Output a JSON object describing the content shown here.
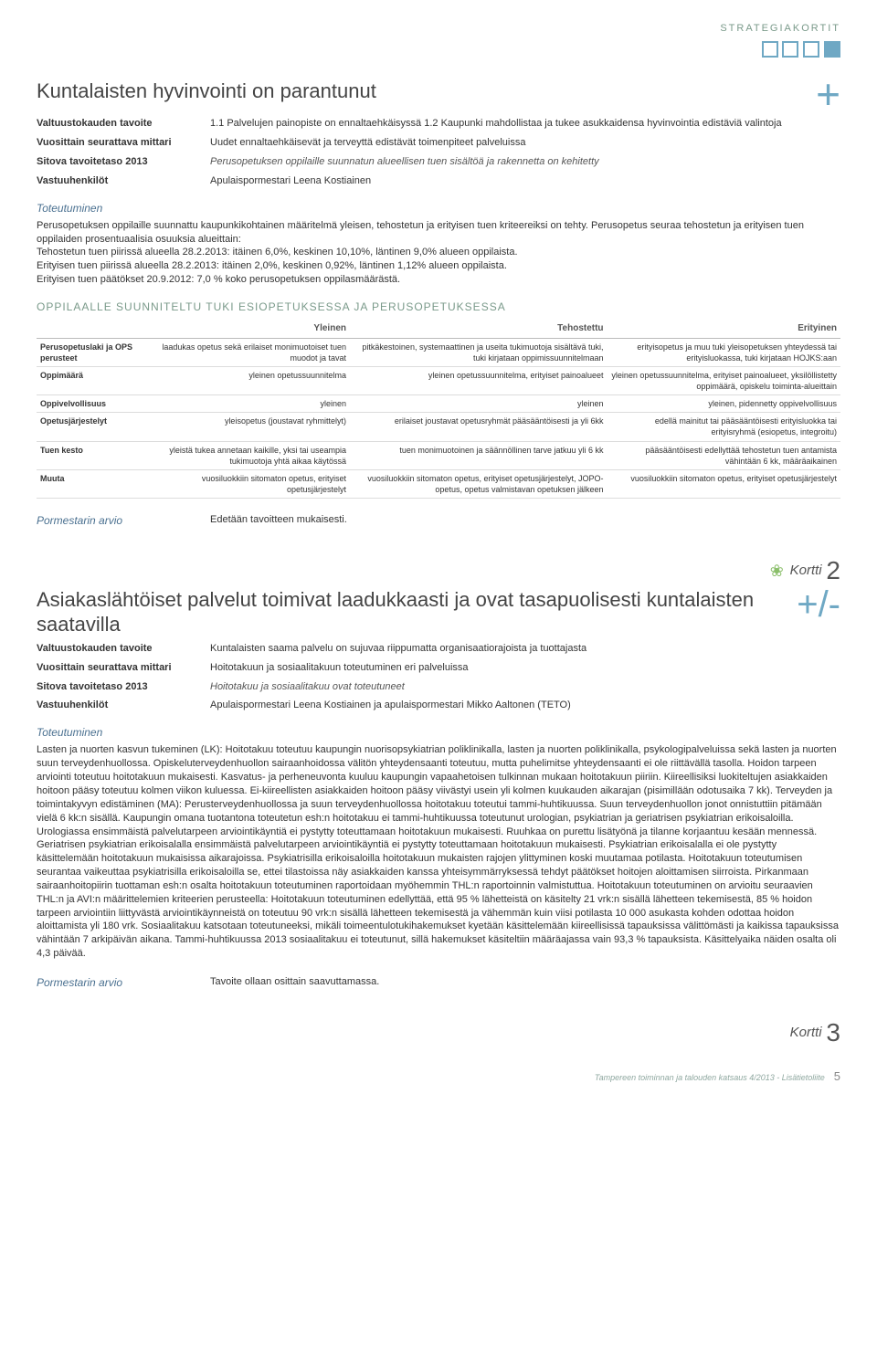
{
  "header": {
    "tag": "STRATEGIAKORTIT"
  },
  "card1": {
    "title": "Kuntalaisten hyvinvointi on parantunut",
    "sign": "+",
    "meta": [
      {
        "label": "Valtuustokauden tavoite",
        "value": "1.1 Palvelujen painopiste on ennaltaehkäisyssä 1.2 Kaupunki mahdollistaa ja tukee asukkaidensa hyvinvointia edistäviä valintoja"
      },
      {
        "label": "Vuosittain seurattava mittari",
        "value": "Uudet ennaltaehkäisevät ja terveyttä edistävät toimenpiteet palveluissa"
      },
      {
        "label": "Sitova tavoitetaso 2013",
        "value": "Perusopetuksen oppilaille suunnatun alueellisen tuen sisältöä ja rakennetta on kehitetty",
        "italic": true
      },
      {
        "label": "Vastuuhenkilöt",
        "value": "Apulaispormestari Leena Kostiainen"
      }
    ],
    "toteutuminen_heading": "Toteutuminen",
    "toteutuminen_body": "Perusopetuksen oppilaille suunnattu kaupunkikohtainen määritelmä yleisen, tehostetun ja erityisen tuen kriteereiksi on tehty. Perusopetus seuraa tehostetun ja erityisen tuen oppilaiden prosentuaalisia osuuksia alueittain:\nTehostetun tuen piirissä alueella 28.2.2013: itäinen 6,0%, keskinen 10,10%, läntinen 9,0% alueen oppilaista.\nErityisen tuen piirissä alueella 28.2.2013: itäinen 2,0%, keskinen 0,92%, läntinen 1,12% alueen oppilaista.\nErityisen tuen päätökset 20.9.2012: 7,0 % koko perusopetuksen oppilasmäärästä.",
    "table_title": "OPPILAALLE SUUNNITELTU TUKI ESIOPETUKSESSA JA PERUSOPETUKSESSA",
    "table": {
      "columns": [
        "",
        "Yleinen",
        "Tehostettu",
        "Erityinen"
      ],
      "rows": [
        [
          "Perusopetuslaki ja OPS perusteet",
          "laadukas opetus sekä erilaiset monimuotoiset tuen muodot ja tavat",
          "pitkäkestoinen, systemaattinen ja useita tukimuotoja sisältävä tuki, tuki kirjataan oppimissuunnitelmaan",
          "erityisopetus ja muu tuki yleisopetuksen yhteydessä tai erityisluokassa, tuki kirjataan HOJKS:aan"
        ],
        [
          "Oppimäärä",
          "yleinen opetussuunnitelma",
          "yleinen opetussuunnitelma, erityiset painoalueet",
          "yleinen opetussuunnitelma, erityiset painoalueet, yksilöllistetty oppimäärä, opiskelu toiminta-alueittain"
        ],
        [
          "Oppivelvollisuus",
          "yleinen",
          "yleinen",
          "yleinen, pidennetty oppivelvollisuus"
        ],
        [
          "Opetusjärjestelyt",
          "yleisopetus (joustavat ryhmittelyt)",
          "erilaiset joustavat opetusryhmät pääsääntöisesti ja yli 6kk",
          "edellä mainitut tai pääsääntöisesti erityisluokka tai erityisryhmä (esiopetus, integroitu)"
        ],
        [
          "Tuen kesto",
          "yleistä tukea annetaan kaikille, yksi tai useampia tukimuotoja yhtä aikaa käytössä",
          "tuen monimuotoinen ja säännöllinen tarve jatkuu yli 6 kk",
          "pääsääntöisesti edellyttää tehostetun tuen antamista vähintään 6 kk, määräaikainen"
        ],
        [
          "Muuta",
          "vuosiluokkiin sitomaton opetus, erityiset opetusjärjestelyt",
          "vuosiluokkiin sitomaton opetus, erityiset opetusjärjestelyt, JOPO-opetus, opetus valmistavan opetuksen jälkeen",
          "vuosiluokkiin sitomaton opetus, erityiset opetusjärjestelyt"
        ]
      ]
    },
    "mayor_label": "Pormestarin arvio",
    "mayor_value": "Edetään tavoitteen mukaisesti."
  },
  "kortti2": {
    "label": "Kortti",
    "num": "2"
  },
  "card2": {
    "title": "Asiakaslähtöiset palvelut toimivat laadukkaasti ja ovat tasapuolisesti kuntalaisten saatavilla",
    "sign": "+/-",
    "meta": [
      {
        "label": "Valtuustokauden tavoite",
        "value": "Kuntalaisten saama palvelu on sujuvaa riippumatta organisaatiorajoista ja tuottajasta"
      },
      {
        "label": "Vuosittain seurattava mittari",
        "value": "Hoitotakuun ja sosiaalitakuun toteutuminen eri palveluissa"
      },
      {
        "label": "Sitova tavoitetaso 2013",
        "value": "Hoitotakuu ja sosiaalitakuu ovat toteutuneet",
        "italic": true
      },
      {
        "label": "Vastuuhenkilöt",
        "value": "Apulaispormestari Leena Kostiainen ja apulaispormestari Mikko Aaltonen (TETO)"
      }
    ],
    "toteutuminen_heading": "Toteutuminen",
    "toteutuminen_body": "Lasten ja nuorten kasvun tukeminen (LK): Hoitotakuu toteutuu kaupungin nuorisopsykiatrian poliklinikalla, lasten ja nuorten poliklinikalla, psykologipalveluissa sekä lasten ja nuorten suun terveydenhuollossa. Opiskeluterveydenhuollon sairaanhoidossa välitön yhteydensaanti toteutuu, mutta puhelimitse yhteydensaanti ei ole riittävällä tasolla. Hoidon tarpeen arviointi toteutuu hoitotakuun mukaisesti. Kasvatus- ja perheneuvonta kuuluu kaupungin vapaahetoisen tulkinnan mukaan hoitotakuun piiriin. Kiireellisiksi luokiteltujen asiakkaiden hoitoon pääsy toteutuu kolmen viikon kuluessa. Ei-kiireellisten asiakkaiden hoitoon pääsy viivästyi usein yli kolmen kuukauden aikarajan (pisimillään odotusaika 7 kk). Terveyden ja toimintakyvyn edistäminen (MA): Perusterveydenhuollossa ja suun terveydenhuollossa hoitotakuu toteutui tammi-huhtikuussa. Suun terveydenhuollon jonot onnistuttiin pitämään vielä 6 kk:n sisällä. Kaupungin omana tuotantona toteutetun esh:n hoitotakuu ei tammi-huhtikuussa toteutunut urologian, psykiatrian ja geriatrisen psykiatrian erikoisaloilla. Urologiassa ensimmäistä palvelutarpeen arviointikäyntiä ei pystytty toteuttamaan hoitotakuun mukaisesti. Ruuhkaa on purettu lisätyönä ja tilanne korjaantuu kesään mennessä. Geriatrisen psykiatrian erikoisalalla ensimmäistä palvelutarpeen arviointikäyntiä ei pystytty toteuttamaan hoitotakuun mukaisesti. Psykiatrian erikoisalalla ei ole pystytty käsittelemään hoitotakuun mukaisissa aikarajoissa. Psykiatrisilla erikoisaloilla hoitotakuun mukaisten rajojen ylittyminen koski muutamaa potilasta. Hoitotakuun toteutumisen seurantaa vaikeuttaa psykiatrisilla erikoisaloilla se, ettei tilastoissa näy asiakkaiden kanssa yhteisymmärryksessä tehdyt päätökset hoitojen aloittamisen siirroista. Pirkanmaan sairaanhoitopiirin tuottaman esh:n osalta hoitotakuun toteutuminen raportoidaan myöhemmin THL:n raportoinnin valmistuttua. Hoitotakuun toteutuminen on arvioitu seuraavien THL:n ja AVI:n määrittelemien kriteerien perusteella: Hoitotakuun toteutuminen edellyttää, että 95 % lähetteistä on käsitelty 21 vrk:n sisällä lähetteen tekemisestä, 85 % hoidon tarpeen arviointiin liittyvästä arviointikäynneistä on toteutuu 90 vrk:n sisällä lähetteen tekemisestä ja vähemmän kuin viisi potilasta 10 000 asukasta kohden odottaa hoidon aloittamista yli 180 vrk. Sosiaalitakuu katsotaan toteutuneeksi, mikäli toimeentulotukihakemukset kyetään käsittelemään kiireellisissä tapauksissa välittömästi ja kaikissa tapauksissa vähintään 7 arkipäivän aikana. Tammi-huhtikuussa 2013 sosiaalitakuu ei toteutunut, sillä hakemukset käsiteltiin määräajassa vain 93,3 % tapauksista. Käsittelyaika näiden osalta oli 4,3 päivää.",
    "mayor_label": "Pormestarin arvio",
    "mayor_value": "Tavoite ollaan osittain saavuttamassa."
  },
  "kortti3": {
    "label": "Kortti",
    "num": "3"
  },
  "footer": {
    "source": "Tampereen toiminnan ja talouden katsaus 4/2013 - Lisätietoliite",
    "page": "5"
  }
}
